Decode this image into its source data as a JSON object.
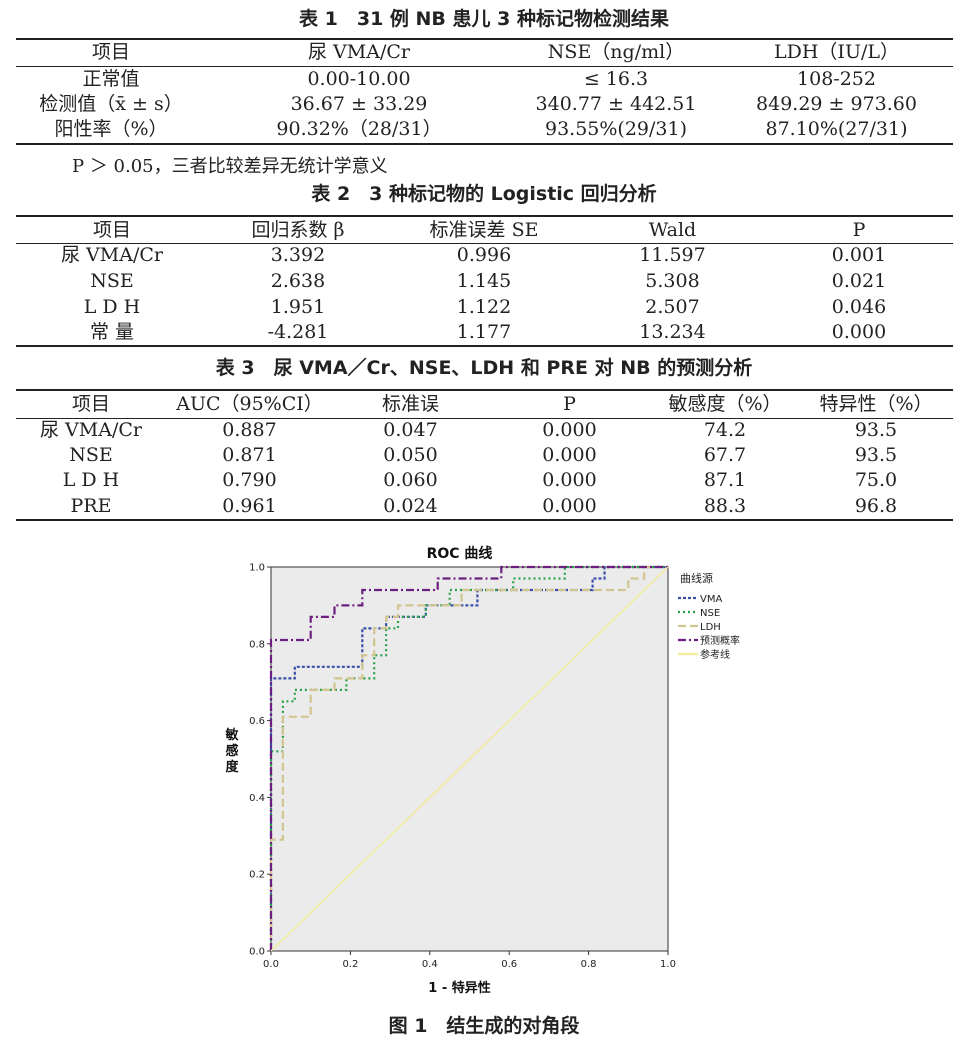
{
  "table1": {
    "caption": "表 1　31 例 NB 患儿 3 种标记物检测结果",
    "headers": [
      "项目",
      "尿 VMA/Cr",
      "NSE（ng/ml）",
      "LDH（IU/L）"
    ],
    "rows": [
      [
        "正常值",
        "0.00-10.00",
        "≤ 16.3",
        "108-252"
      ],
      [
        "检测值（x̄ ± s）",
        "36.67 ± 33.29",
        "340.77 ± 442.51",
        "849.29 ± 973.60"
      ],
      [
        "阳性率（%）",
        "90.32%（28/31）",
        "93.55%(29/31)",
        "87.10%(27/31)"
      ]
    ]
  },
  "note": "P ＞ 0.05，三者比较差异无统计学意义",
  "table2": {
    "caption": "表 2　3 种标记物的 Logistic 回归分析",
    "headers": [
      "项目",
      "回归系数 β",
      "标准误差 SE",
      "Wald",
      "P"
    ],
    "rows": [
      [
        "尿 VMA/Cr",
        "3.392",
        "0.996",
        "11.597",
        "0.001"
      ],
      [
        "NSE",
        "2.638",
        "1.145",
        "5.308",
        "0.021"
      ],
      [
        "L D H",
        "1.951",
        "1.122",
        "2.507",
        "0.046"
      ],
      [
        "常 量",
        "-4.281",
        "1.177",
        "13.234",
        "0.000"
      ]
    ]
  },
  "table3": {
    "caption": "表 3　尿 VMA／Cr、NSE、LDH 和 PRE 对 NB 的预测分析",
    "headers": [
      "项目",
      "AUC（95%CI）",
      "标准误",
      "P",
      "敏感度（%）",
      "特异性（%）"
    ],
    "rows": [
      [
        "尿 VMA/Cr",
        "0.887",
        "0.047",
        "0.000",
        "74.2",
        "93.5"
      ],
      [
        "NSE",
        "0.871",
        "0.050",
        "0.000",
        "67.7",
        "93.5"
      ],
      [
        "L D H",
        "0.790",
        "0.060",
        "0.000",
        "87.1",
        "75.0"
      ],
      [
        "PRE",
        "0.961",
        "0.024",
        "0.000",
        "88.3",
        "96.8"
      ]
    ]
  },
  "figure_caption": "图 1　结生成的对角段",
  "chart_data": {
    "type": "line",
    "title": "ROC 曲线",
    "xlabel": "1 - 特异性",
    "ylabel": "敏感度",
    "xlim": [
      0,
      1
    ],
    "ylim": [
      0,
      1
    ],
    "xticks": [
      "0.0",
      "0.2",
      "0.4",
      "0.6",
      "0.8",
      "1.0"
    ],
    "yticks": [
      "0.0",
      "0.2",
      "0.4",
      "0.6",
      "0.8",
      "1.0"
    ],
    "legend_title": "曲线源",
    "legend_position": "right",
    "plot_background": "#ebebeb",
    "series": [
      {
        "name": "VMA",
        "color": "#3a4fa8",
        "dash": "3,2",
        "points": [
          [
            0,
            0
          ],
          [
            0,
            0.71
          ],
          [
            0.06,
            0.71
          ],
          [
            0.06,
            0.74
          ],
          [
            0.23,
            0.74
          ],
          [
            0.23,
            0.84
          ],
          [
            0.29,
            0.84
          ],
          [
            0.29,
            0.87
          ],
          [
            0.39,
            0.87
          ],
          [
            0.39,
            0.9
          ],
          [
            0.52,
            0.9
          ],
          [
            0.52,
            0.94
          ],
          [
            0.81,
            0.94
          ],
          [
            0.81,
            0.97
          ],
          [
            0.84,
            0.97
          ],
          [
            0.84,
            1.0
          ],
          [
            1,
            1
          ]
        ]
      },
      {
        "name": "NSE",
        "color": "#29a24a",
        "dash": "2,3",
        "points": [
          [
            0,
            0
          ],
          [
            0,
            0.52
          ],
          [
            0.03,
            0.52
          ],
          [
            0.03,
            0.65
          ],
          [
            0.06,
            0.65
          ],
          [
            0.06,
            0.68
          ],
          [
            0.19,
            0.68
          ],
          [
            0.19,
            0.71
          ],
          [
            0.26,
            0.71
          ],
          [
            0.26,
            0.77
          ],
          [
            0.29,
            0.77
          ],
          [
            0.29,
            0.84
          ],
          [
            0.32,
            0.84
          ],
          [
            0.32,
            0.87
          ],
          [
            0.39,
            0.87
          ],
          [
            0.39,
            0.9
          ],
          [
            0.45,
            0.9
          ],
          [
            0.45,
            0.94
          ],
          [
            0.61,
            0.94
          ],
          [
            0.61,
            0.97
          ],
          [
            0.74,
            0.97
          ],
          [
            0.74,
            1.0
          ],
          [
            1,
            1
          ]
        ]
      },
      {
        "name": "LDH",
        "color": "#d3c590",
        "dash": "8,4",
        "points": [
          [
            0,
            0
          ],
          [
            0,
            0.29
          ],
          [
            0.03,
            0.29
          ],
          [
            0.03,
            0.61
          ],
          [
            0.1,
            0.61
          ],
          [
            0.1,
            0.68
          ],
          [
            0.16,
            0.68
          ],
          [
            0.16,
            0.71
          ],
          [
            0.23,
            0.71
          ],
          [
            0.23,
            0.77
          ],
          [
            0.26,
            0.77
          ],
          [
            0.26,
            0.84
          ],
          [
            0.29,
            0.84
          ],
          [
            0.29,
            0.87
          ],
          [
            0.32,
            0.87
          ],
          [
            0.32,
            0.9
          ],
          [
            0.48,
            0.9
          ],
          [
            0.48,
            0.94
          ],
          [
            0.68,
            0.94
          ],
          [
            0.68,
            0.94
          ],
          [
            0.9,
            0.94
          ],
          [
            0.9,
            0.97
          ],
          [
            0.94,
            0.97
          ],
          [
            0.94,
            1.0
          ],
          [
            1,
            1
          ]
        ]
      },
      {
        "name": "预测概率",
        "color": "#6b2080",
        "dash": "8,3,2,3",
        "points": [
          [
            0,
            0
          ],
          [
            0,
            0.81
          ],
          [
            0.1,
            0.81
          ],
          [
            0.1,
            0.87
          ],
          [
            0.16,
            0.87
          ],
          [
            0.16,
            0.9
          ],
          [
            0.23,
            0.9
          ],
          [
            0.23,
            0.94
          ],
          [
            0.42,
            0.94
          ],
          [
            0.42,
            0.97
          ],
          [
            0.58,
            0.97
          ],
          [
            0.58,
            1.0
          ],
          [
            1,
            1
          ]
        ]
      },
      {
        "name": "参考线",
        "color": "#f3ec9a",
        "dash": "",
        "points": [
          [
            0,
            0
          ],
          [
            1,
            1
          ]
        ]
      }
    ]
  }
}
